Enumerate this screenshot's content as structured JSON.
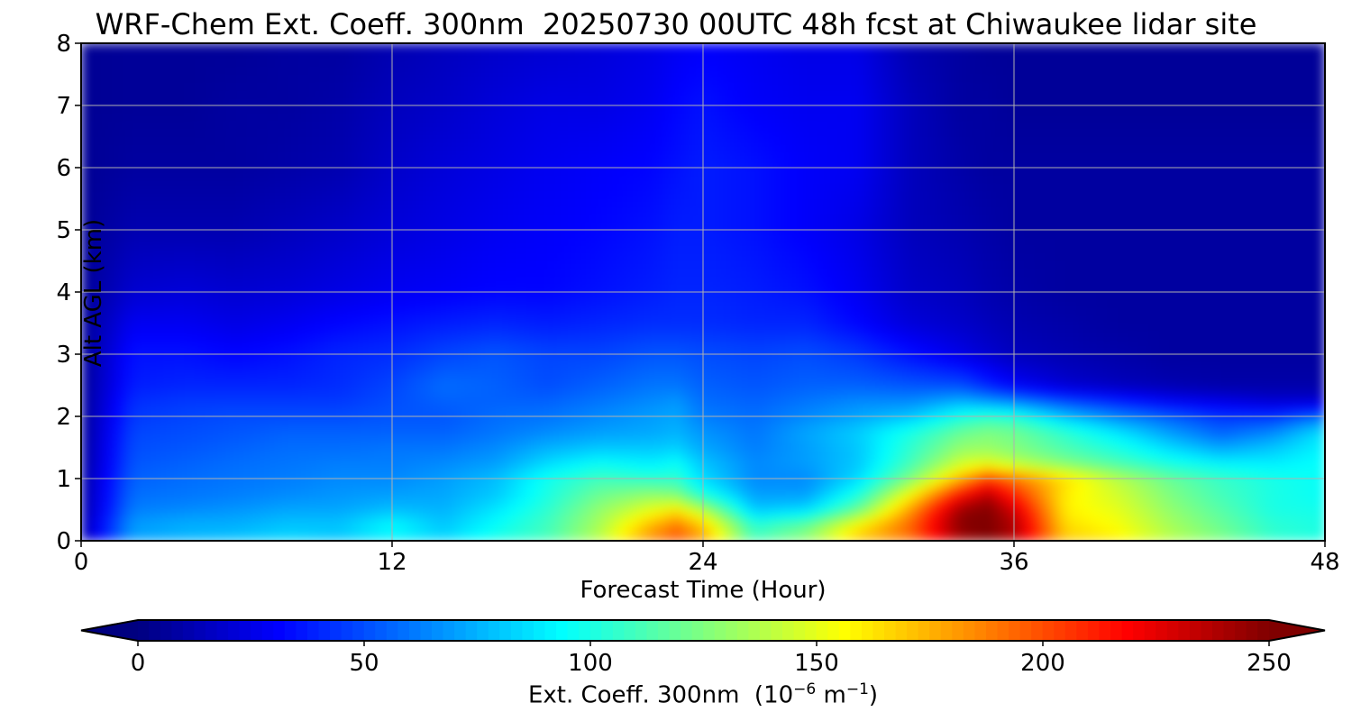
{
  "chart_data": {
    "type": "heatmap",
    "title": "WRF-Chem Ext. Coeff. 300nm  20250730 00UTC 48h fcst at Chiwaukee lidar site",
    "xlabel": "Forecast Time (Hour)",
    "ylabel": "Alt AGL (km)",
    "xlim": [
      0,
      48
    ],
    "ylim": [
      0,
      8
    ],
    "x_ticks": [
      "0",
      "12",
      "24",
      "36",
      "48"
    ],
    "y_ticks": [
      "0",
      "1",
      "2",
      "3",
      "4",
      "5",
      "6",
      "7",
      "8"
    ],
    "grid": true,
    "colormap": "jet",
    "colorbar": {
      "label_prefix": "Ext. Coeff. 300nm  (10",
      "label_exp1": "−6",
      "label_mid": " m",
      "label_exp2": "−1",
      "label_suffix": ")",
      "ticks": [
        "0",
        "50",
        "100",
        "150",
        "200",
        "250"
      ],
      "range": [
        0,
        250
      ],
      "extend": "both"
    },
    "x": [
      0,
      2,
      4,
      6,
      8,
      10,
      12,
      14,
      16,
      18,
      20,
      22,
      23,
      24,
      26,
      28,
      30,
      32,
      34,
      35,
      36,
      38,
      40,
      42,
      44,
      46,
      48
    ],
    "y": [
      0,
      0.25,
      0.5,
      0.75,
      1.0,
      1.25,
      1.5,
      1.75,
      2.0,
      2.25,
      2.5,
      3.0,
      3.5,
      4.0,
      5.0,
      6.0,
      7.0,
      8.0
    ],
    "z": [
      [
        10,
        70,
        75,
        80,
        85,
        80,
        90,
        85,
        100,
        110,
        140,
        185,
        200,
        180,
        110,
        130,
        170,
        190,
        240,
        250,
        235,
        170,
        160,
        140,
        125,
        105,
        100
      ],
      [
        10,
        70,
        75,
        75,
        80,
        80,
        95,
        80,
        95,
        110,
        135,
        175,
        190,
        170,
        105,
        120,
        160,
        195,
        250,
        250,
        240,
        165,
        155,
        135,
        120,
        105,
        100
      ],
      [
        8,
        62,
        65,
        68,
        72,
        72,
        78,
        75,
        88,
        105,
        130,
        150,
        160,
        140,
        80,
        85,
        120,
        180,
        245,
        250,
        230,
        160,
        150,
        130,
        115,
        100,
        98
      ],
      [
        8,
        58,
        60,
        62,
        65,
        68,
        70,
        72,
        80,
        100,
        120,
        130,
        125,
        100,
        70,
        70,
        100,
        155,
        215,
        235,
        210,
        160,
        145,
        125,
        110,
        100,
        95
      ],
      [
        8,
        55,
        58,
        60,
        62,
        65,
        65,
        70,
        78,
        98,
        110,
        105,
        105,
        85,
        65,
        65,
        85,
        125,
        175,
        200,
        190,
        165,
        140,
        120,
        108,
        100,
        95
      ],
      [
        6,
        52,
        55,
        58,
        60,
        62,
        62,
        65,
        70,
        85,
        95,
        90,
        95,
        80,
        65,
        70,
        80,
        110,
        145,
        150,
        140,
        125,
        112,
        100,
        92,
        90,
        95
      ],
      [
        6,
        50,
        52,
        55,
        58,
        58,
        60,
        60,
        65,
        75,
        80,
        80,
        82,
        72,
        62,
        70,
        80,
        105,
        130,
        130,
        125,
        112,
        100,
        85,
        72,
        80,
        92
      ],
      [
        5,
        48,
        50,
        52,
        55,
        55,
        55,
        55,
        60,
        65,
        70,
        72,
        75,
        68,
        60,
        72,
        82,
        100,
        120,
        125,
        122,
        105,
        88,
        70,
        55,
        65,
        88
      ],
      [
        5,
        45,
        48,
        50,
        50,
        50,
        52,
        52,
        58,
        60,
        65,
        70,
        72,
        62,
        58,
        65,
        72,
        80,
        100,
        105,
        102,
        80,
        65,
        55,
        45,
        45,
        60
      ],
      [
        5,
        42,
        45,
        45,
        45,
        45,
        50,
        55,
        55,
        55,
        60,
        65,
        68,
        58,
        55,
        60,
        65,
        65,
        75,
        70,
        65,
        50,
        40,
        30,
        25,
        20,
        20
      ],
      [
        5,
        38,
        40,
        40,
        40,
        42,
        48,
        58,
        55,
        50,
        55,
        60,
        60,
        55,
        52,
        55,
        55,
        52,
        50,
        40,
        30,
        20,
        15,
        12,
        10,
        10,
        10
      ],
      [
        5,
        35,
        35,
        32,
        35,
        40,
        42,
        48,
        52,
        48,
        48,
        52,
        52,
        50,
        48,
        50,
        45,
        35,
        25,
        20,
        15,
        12,
        10,
        8,
        8,
        8,
        8
      ],
      [
        5,
        28,
        28,
        25,
        28,
        32,
        35,
        38,
        40,
        38,
        40,
        42,
        42,
        42,
        40,
        40,
        32,
        22,
        18,
        15,
        12,
        10,
        8,
        8,
        8,
        8,
        8
      ],
      [
        5,
        20,
        22,
        20,
        22,
        25,
        28,
        30,
        32,
        32,
        35,
        38,
        40,
        40,
        38,
        35,
        28,
        18,
        15,
        12,
        10,
        8,
        8,
        8,
        8,
        8,
        8
      ],
      [
        5,
        12,
        12,
        12,
        15,
        18,
        22,
        25,
        28,
        30,
        32,
        35,
        38,
        38,
        35,
        30,
        25,
        15,
        12,
        10,
        8,
        8,
        8,
        8,
        8,
        8,
        8
      ],
      [
        5,
        8,
        8,
        8,
        10,
        12,
        18,
        22,
        25,
        28,
        30,
        32,
        35,
        38,
        35,
        30,
        28,
        15,
        10,
        8,
        8,
        8,
        8,
        8,
        8,
        8,
        8
      ],
      [
        5,
        6,
        6,
        8,
        8,
        10,
        15,
        18,
        22,
        25,
        25,
        28,
        32,
        35,
        30,
        28,
        28,
        15,
        8,
        8,
        6,
        6,
        6,
        6,
        6,
        6,
        6
      ],
      [
        5,
        6,
        6,
        6,
        8,
        8,
        12,
        15,
        18,
        20,
        22,
        25,
        28,
        30,
        28,
        25,
        25,
        12,
        8,
        6,
        6,
        6,
        6,
        6,
        6,
        6,
        6
      ]
    ]
  }
}
